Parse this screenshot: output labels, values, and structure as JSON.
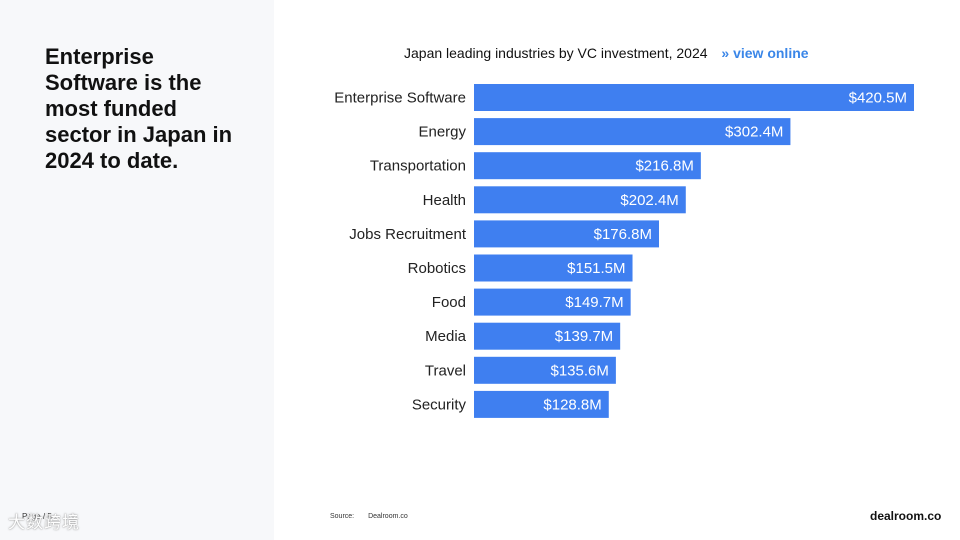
{
  "slide": {
    "headline": "Enterprise Software is the most funded sector in Japan in 2024 to date.",
    "page_label": "Page / 5",
    "watermark": "大数跨境",
    "source_label": "Source:",
    "source_value": "Dealroom.co",
    "brand": "dealroom.co",
    "view_online": "» view online",
    "colors": {
      "bar": "#3f7ff0",
      "link": "#3a86e8",
      "left_panel": "#f7f8fa"
    }
  },
  "chart_data": {
    "type": "bar",
    "orientation": "horizontal",
    "title": "Japan leading industries by VC investment, 2024",
    "categories": [
      "Enterprise Software",
      "Energy",
      "Transportation",
      "Health",
      "Jobs Recruitment",
      "Robotics",
      "Food",
      "Media",
      "Travel",
      "Security"
    ],
    "values": [
      420.5,
      302.4,
      216.8,
      202.4,
      176.8,
      151.5,
      149.7,
      139.7,
      135.6,
      128.8
    ],
    "value_labels": [
      "$420.5M",
      "$302.4M",
      "$216.8M",
      "$202.4M",
      "$176.8M",
      "$151.5M",
      "$149.7M",
      "$139.7M",
      "$135.6M",
      "$128.8M"
    ],
    "unit": "$M",
    "xlim": [
      0,
      420.5
    ],
    "grid": false,
    "legend": "none"
  }
}
